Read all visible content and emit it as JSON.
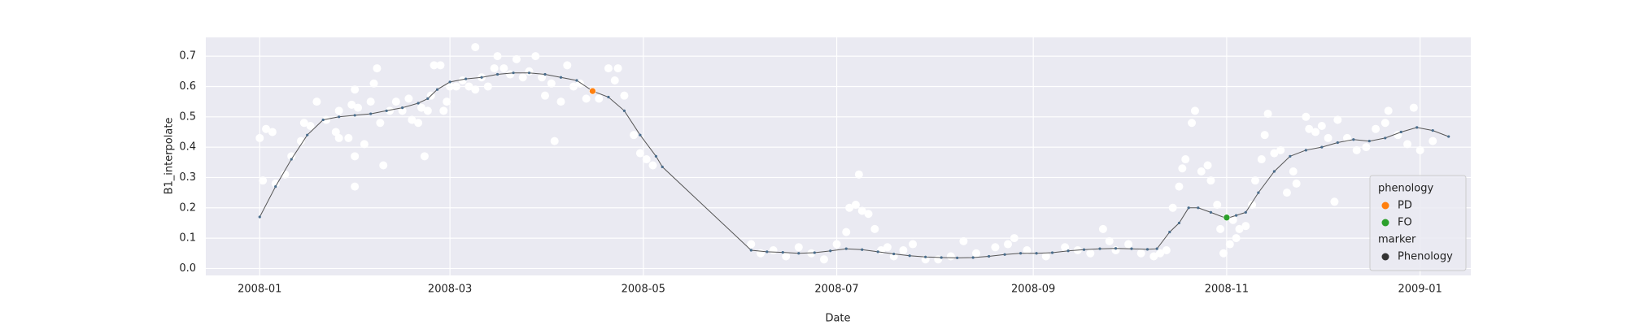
{
  "chart_data": {
    "type": "line",
    "x_label": "Date",
    "y_label": "B1_interpolate",
    "xlim": [
      -17,
      382
    ],
    "ylim": [
      -0.023,
      0.762
    ],
    "xticks": [
      {
        "value": 0,
        "label": "2008-01"
      },
      {
        "value": 60,
        "label": "2008-03"
      },
      {
        "value": 121,
        "label": "2008-05"
      },
      {
        "value": 182,
        "label": "2008-07"
      },
      {
        "value": 244,
        "label": "2008-09"
      },
      {
        "value": 305,
        "label": "2008-11"
      },
      {
        "value": 366,
        "label": "2009-01"
      }
    ],
    "yticks": [
      {
        "value": 0,
        "label": "0.0"
      },
      0.1,
      0.2,
      0.3,
      0.4,
      0.5,
      0.6,
      0.7
    ],
    "grid": true,
    "legend": {
      "position": "lower right",
      "hue_title": "phenology",
      "style_title": "marker",
      "style_entries": [
        "Phenology"
      ],
      "style_color": "#333333"
    },
    "series": [
      {
        "kind": "scatter",
        "color": "#ffffff",
        "x": [
          0,
          2,
          4,
          1,
          5,
          8,
          10,
          13,
          16,
          14,
          18,
          21,
          25,
          29,
          30,
          31,
          24,
          25,
          28,
          30,
          33,
          30,
          35,
          36,
          37,
          38,
          39,
          41,
          43,
          45,
          47,
          48,
          50,
          52,
          51,
          53,
          54,
          55,
          57,
          58,
          59,
          60,
          62,
          64,
          66,
          68,
          68,
          70,
          72,
          74,
          75,
          77,
          79,
          81,
          83,
          85,
          87,
          89,
          90,
          92,
          93,
          95,
          97,
          99,
          101,
          103,
          107,
          110,
          112,
          113,
          115,
          118,
          120,
          122,
          124,
          155,
          158,
          162,
          166,
          170,
          174,
          178,
          182,
          185,
          186,
          188,
          189,
          190,
          192,
          194,
          196,
          198,
          200,
          203,
          206,
          210,
          214,
          218,
          222,
          226,
          232,
          236,
          238,
          242,
          248,
          254,
          258,
          262,
          266,
          268,
          270,
          274,
          278,
          282,
          284,
          286,
          288,
          290,
          291,
          292,
          294,
          295,
          297,
          299,
          300,
          302,
          303,
          304,
          306,
          307,
          308,
          309,
          311,
          313,
          314,
          316,
          317,
          318,
          320,
          322,
          324,
          326,
          327,
          330,
          331,
          333,
          335,
          337,
          339,
          340,
          343,
          346,
          349,
          352,
          355,
          356,
          359,
          362,
          364,
          366,
          370
        ],
        "values": [
          0.43,
          0.46,
          0.45,
          0.29,
          0.28,
          0.31,
          0.37,
          0.42,
          0.47,
          0.48,
          0.55,
          0.49,
          0.52,
          0.54,
          0.59,
          0.53,
          0.45,
          0.43,
          0.43,
          0.37,
          0.41,
          0.27,
          0.55,
          0.61,
          0.66,
          0.48,
          0.34,
          0.52,
          0.55,
          0.52,
          0.56,
          0.49,
          0.48,
          0.37,
          0.53,
          0.52,
          0.57,
          0.67,
          0.67,
          0.52,
          0.55,
          0.6,
          0.6,
          0.62,
          0.6,
          0.59,
          0.73,
          0.63,
          0.6,
          0.66,
          0.7,
          0.66,
          0.64,
          0.69,
          0.63,
          0.65,
          0.7,
          0.63,
          0.57,
          0.61,
          0.42,
          0.55,
          0.67,
          0.6,
          0.61,
          0.56,
          0.56,
          0.66,
          0.62,
          0.66,
          0.57,
          0.44,
          0.38,
          0.36,
          0.34,
          0.08,
          0.05,
          0.06,
          0.04,
          0.07,
          0.05,
          0.03,
          0.08,
          0.12,
          0.2,
          0.21,
          0.31,
          0.19,
          0.18,
          0.13,
          0.06,
          0.07,
          0.04,
          0.06,
          0.08,
          0.03,
          0.03,
          0.04,
          0.09,
          0.05,
          0.07,
          0.08,
          0.1,
          0.06,
          0.04,
          0.07,
          0.06,
          0.05,
          0.13,
          0.09,
          0.06,
          0.08,
          0.05,
          0.04,
          0.05,
          0.06,
          0.2,
          0.27,
          0.33,
          0.36,
          0.48,
          0.52,
          0.32,
          0.34,
          0.29,
          0.21,
          0.13,
          0.05,
          0.08,
          0.16,
          0.1,
          0.13,
          0.14,
          0.21,
          0.29,
          0.36,
          0.44,
          0.51,
          0.38,
          0.39,
          0.25,
          0.32,
          0.28,
          0.5,
          0.46,
          0.45,
          0.47,
          0.43,
          0.22,
          0.49,
          0.43,
          0.39,
          0.4,
          0.46,
          0.48,
          0.52,
          0.44,
          0.41,
          0.53,
          0.39,
          0.42
        ]
      },
      {
        "kind": "line",
        "color": "#4a6d8c",
        "x": [
          0,
          5,
          10,
          15,
          20,
          25,
          30,
          35,
          40,
          45,
          50,
          53,
          56,
          60,
          65,
          70,
          75,
          80,
          85,
          90,
          95,
          100,
          105,
          110,
          115,
          120,
          125,
          127,
          155,
          160,
          165,
          170,
          175,
          180,
          185,
          190,
          195,
          200,
          205,
          210,
          215,
          220,
          225,
          230,
          235,
          240,
          245,
          250,
          255,
          260,
          265,
          270,
          275,
          280,
          283,
          287,
          290,
          293,
          296,
          300,
          305,
          308,
          311,
          315,
          320,
          325,
          330,
          335,
          340,
          345,
          350,
          355,
          360,
          365,
          370,
          375
        ],
        "values": [
          0.17,
          0.27,
          0.36,
          0.44,
          0.49,
          0.5,
          0.505,
          0.51,
          0.52,
          0.53,
          0.545,
          0.56,
          0.59,
          0.615,
          0.625,
          0.63,
          0.64,
          0.645,
          0.645,
          0.64,
          0.63,
          0.62,
          0.585,
          0.565,
          0.52,
          0.44,
          0.37,
          0.335,
          0.06,
          0.055,
          0.053,
          0.05,
          0.052,
          0.058,
          0.065,
          0.062,
          0.055,
          0.048,
          0.042,
          0.038,
          0.036,
          0.035,
          0.036,
          0.04,
          0.046,
          0.05,
          0.05,
          0.052,
          0.058,
          0.062,
          0.065,
          0.066,
          0.065,
          0.063,
          0.065,
          0.12,
          0.15,
          0.2,
          0.2,
          0.185,
          0.165,
          0.175,
          0.185,
          0.25,
          0.32,
          0.37,
          0.39,
          0.4,
          0.415,
          0.425,
          0.42,
          0.43,
          0.45,
          0.465,
          0.455,
          0.435
        ]
      },
      {
        "kind": "scatter",
        "name": "PD",
        "color": "#ff7f0e",
        "x": [
          105
        ],
        "values": [
          0.585
        ]
      },
      {
        "kind": "scatter",
        "name": "FO",
        "color": "#2ca02c",
        "x": [
          305
        ],
        "values": [
          0.168
        ]
      }
    ]
  }
}
